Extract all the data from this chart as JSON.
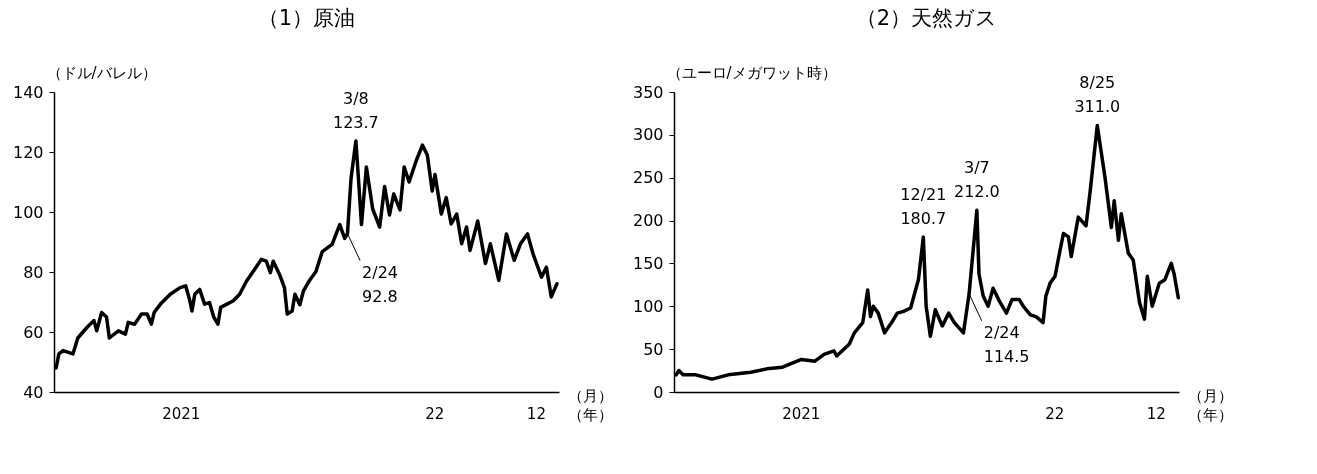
{
  "chart_data": [
    {
      "type": "line",
      "title": "（1）原油",
      "ylabel": "（ドル/バレル）",
      "xlabel": "（月）（年）",
      "x": [
        "2021-01-04",
        "2021-01-08",
        "2021-01-14",
        "2021-01-28",
        "2021-02-04",
        "2021-02-17",
        "2021-02-27",
        "2021-03-03",
        "2021-03-10",
        "2021-03-17",
        "2021-03-21",
        "2021-04-03",
        "2021-04-13",
        "2021-04-17",
        "2021-04-26",
        "2021-05-06",
        "2021-05-14",
        "2021-05-20",
        "2021-05-24",
        "2021-06-02",
        "2021-06-16",
        "2021-06-30",
        "2021-07-08",
        "2021-07-14",
        "2021-07-17",
        "2021-07-21",
        "2021-07-28",
        "2021-08-04",
        "2021-08-11",
        "2021-08-17",
        "2021-08-23",
        "2021-08-27",
        "2021-09-05",
        "2021-09-14",
        "2021-09-23",
        "2021-10-03",
        "2021-10-16",
        "2021-10-24",
        "2021-10-31",
        "2021-11-06",
        "2021-11-10",
        "2021-11-19",
        "2021-11-26",
        "2021-11-30",
        "2021-12-07",
        "2021-12-11",
        "2021-12-18",
        "2021-12-23",
        "2021-12-31",
        "2022-01-10",
        "2022-01-19",
        "2022-02-02",
        "2022-02-13",
        "2022-02-20",
        "2022-02-24",
        "2022-03-01",
        "2022-03-08",
        "2022-03-12",
        "2022-03-16",
        "2022-03-23",
        "2022-04-01",
        "2022-04-11",
        "2022-04-18",
        "2022-04-25",
        "2022-05-01",
        "2022-05-10",
        "2022-05-16",
        "2022-05-23",
        "2022-06-02",
        "2022-06-11",
        "2022-06-18",
        "2022-06-25",
        "2022-06-29",
        "2022-07-08",
        "2022-07-15",
        "2022-07-22",
        "2022-07-30",
        "2022-08-06",
        "2022-08-13",
        "2022-08-18",
        "2022-08-29",
        "2022-09-09",
        "2022-09-16",
        "2022-09-28",
        "2022-10-09",
        "2022-10-20",
        "2022-10-29",
        "2022-11-08",
        "2022-11-16",
        "2022-11-28",
        "2022-12-05",
        "2022-12-12",
        "2022-12-20"
      ],
      "series": [
        {
          "color": "#000000",
          "values": [
            48,
            52.7,
            53.8,
            52.7,
            58,
            61.5,
            63.8,
            60.4,
            66.5,
            65,
            58,
            60.4,
            59.3,
            63.2,
            62.6,
            66,
            66,
            62.6,
            66.5,
            69.3,
            72.6,
            74.8,
            75.4,
            70.4,
            67,
            72.6,
            74.2,
            69.3,
            69.8,
            65,
            62.6,
            68.2,
            69.3,
            70.4,
            72.6,
            77,
            81.4,
            84.2,
            83.6,
            79.8,
            83.6,
            79.2,
            74.8,
            66,
            67,
            72.6,
            69.1,
            73.6,
            76.9,
            80.2,
            86.8,
            89.2,
            95.8,
            91.2,
            92.8,
            111,
            123.7,
            110,
            95.8,
            115,
            101,
            95,
            108.5,
            99,
            106,
            100.7,
            115,
            110,
            117,
            122.3,
            119,
            107,
            112.5,
            99.3,
            104.8,
            96,
            99.3,
            89.4,
            95,
            87.2,
            97,
            82.8,
            89.4,
            77.2,
            92.7,
            83.9,
            89.4,
            92.7,
            86,
            78.3,
            81.6,
            71.7,
            76.1
          ]
        }
      ],
      "xlim": [
        "2021-01-01",
        "2022-12-23"
      ],
      "xticks": [
        {
          "value": "2021-07-01",
          "label": "2021"
        },
        {
          "value": "2022-06-28",
          "label": "22"
        },
        {
          "value": "2022-11-20",
          "label": "12"
        }
      ],
      "ylim": [
        40,
        140
      ],
      "yticks": [
        40,
        60,
        80,
        100,
        120,
        140
      ],
      "annotations": [
        {
          "text": "3/8\n123.7",
          "x": "2022-03-08",
          "y": 123.7
        },
        {
          "text": "2/24\n92.8",
          "x": "2022-02-24",
          "y": 92.8
        }
      ]
    },
    {
      "type": "line",
      "title": "（2）天然ガス",
      "ylabel": "（ユーロ/メガワット時）",
      "xlabel": "（月）（年）",
      "x": [
        "2021-01-04",
        "2021-01-08",
        "2021-01-14",
        "2021-02-01",
        "2021-02-24",
        "2021-03-19",
        "2021-04-20",
        "2021-05-13",
        "2021-06-04",
        "2021-07-01",
        "2021-07-20",
        "2021-08-02",
        "2021-08-16",
        "2021-08-20",
        "2021-09-07",
        "2021-09-14",
        "2021-09-26",
        "2021-10-03",
        "2021-10-07",
        "2021-10-11",
        "2021-10-18",
        "2021-10-27",
        "2021-11-06",
        "2021-11-14",
        "2021-11-23",
        "2021-12-03",
        "2021-12-14",
        "2021-12-21",
        "2021-12-25",
        "2021-12-31",
        "2022-01-07",
        "2022-01-17",
        "2022-01-26",
        "2022-02-03",
        "2022-02-16",
        "2022-02-24",
        "2022-03-07",
        "2022-03-10",
        "2022-03-16",
        "2022-03-23",
        "2022-03-30",
        "2022-04-08",
        "2022-04-18",
        "2022-04-26",
        "2022-05-06",
        "2022-05-12",
        "2022-05-22",
        "2022-05-30",
        "2022-06-09",
        "2022-06-13",
        "2022-06-19",
        "2022-06-26",
        "2022-07-03",
        "2022-07-08",
        "2022-07-15",
        "2022-07-19",
        "2022-07-29",
        "2022-08-09",
        "2022-08-15",
        "2022-08-25",
        "2022-09-05",
        "2022-09-14",
        "2022-09-18",
        "2022-09-24",
        "2022-09-28",
        "2022-10-08",
        "2022-10-15",
        "2022-10-24",
        "2022-10-31",
        "2022-11-04",
        "2022-11-11",
        "2022-11-21",
        "2022-11-29",
        "2022-12-08",
        "2022-12-12",
        "2022-12-18"
      ],
      "series": [
        {
          "color": "#000000",
          "values": [
            20,
            25,
            20,
            20,
            15,
            20,
            23,
            27,
            29,
            38,
            36,
            44,
            48,
            42,
            56,
            69,
            81,
            119,
            88,
            100,
            92,
            69,
            81,
            92,
            94,
            98,
            131,
            180.7,
            100,
            65,
            96,
            77,
            92,
            81,
            69,
            114.5,
            212.0,
            138,
            112,
            100,
            121,
            106,
            92,
            108,
            108,
            100,
            90,
            88,
            81,
            112,
            127,
            135,
            165,
            185,
            181,
            158,
            204,
            194,
            235,
            311.0,
            250,
            192,
            223,
            177,
            208,
            162,
            154,
            104,
            85,
            135,
            100,
            127,
            131,
            150,
            138,
            110
          ]
        }
      ],
      "xlim": [
        "2021-01-01",
        "2022-12-19"
      ],
      "xticks": [
        {
          "value": "2021-06-30",
          "label": "2021"
        },
        {
          "value": "2022-06-25",
          "label": "22"
        },
        {
          "value": "2022-11-16",
          "label": "12"
        }
      ],
      "ylim": [
        0,
        350
      ],
      "yticks": [
        0,
        50,
        100,
        150,
        200,
        250,
        300,
        350
      ],
      "annotations": [
        {
          "text": "12/21\n180.7",
          "x": "2021-12-21",
          "y": 180.7
        },
        {
          "text": "2/24\n114.5",
          "x": "2022-02-24",
          "y": 114.5
        },
        {
          "text": "3/7\n212.0",
          "x": "2022-03-07",
          "y": 212.0
        },
        {
          "text": "8/25\n311.0",
          "x": "2022-08-25",
          "y": 311.0
        }
      ]
    }
  ]
}
